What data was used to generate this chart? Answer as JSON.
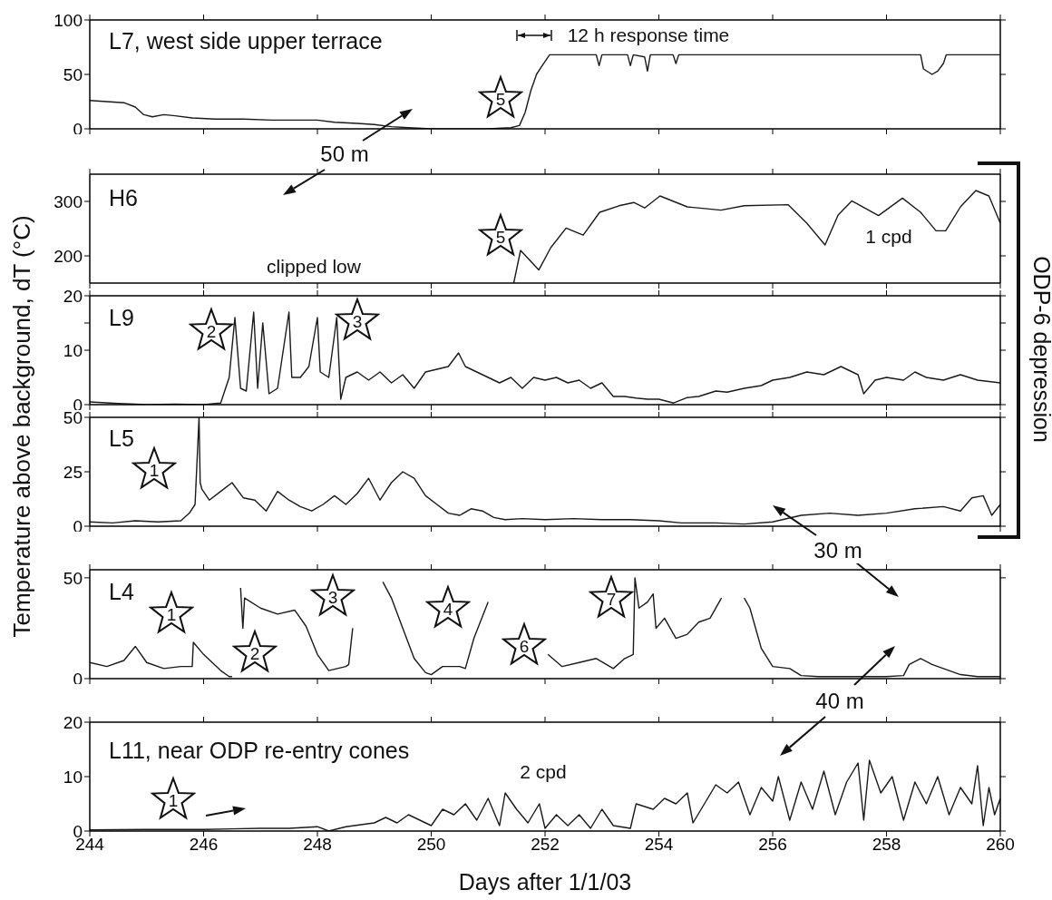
{
  "chart_data": [
    {
      "type": "line",
      "title": "L7, west side upper terrace",
      "color": "#1a1a1a",
      "xlim": [
        244,
        260
      ],
      "xticks": [
        244,
        246,
        248,
        250,
        252,
        254,
        256,
        258,
        260
      ],
      "ylim": [
        0,
        100
      ],
      "yticks": [
        0,
        50,
        100
      ],
      "tick_labels": "y",
      "x": [
        244,
        244.3,
        244.6,
        244.8,
        244.95,
        245.1,
        245.3,
        245.5,
        245.8,
        246.2,
        246.7,
        247.2,
        247.7,
        248.0,
        248.3,
        248.7,
        249.0,
        249.3,
        249.6,
        250.0,
        250.5,
        251.0,
        251.4,
        251.55,
        251.65,
        251.75,
        251.85,
        251.95,
        252.08,
        252.9,
        252.95,
        253.0,
        253.45,
        253.5,
        253.55,
        253.75,
        253.8,
        253.85,
        254.25,
        254.3,
        254.35,
        255,
        256,
        257,
        258,
        258.6,
        258.65,
        258.8,
        258.9,
        259.0,
        259.05,
        260
      ],
      "values": [
        26,
        25,
        24,
        20,
        13,
        11,
        13,
        12,
        10,
        9,
        9,
        8,
        8,
        8,
        6,
        5,
        4,
        2,
        1,
        0,
        0,
        0,
        1,
        3,
        15,
        35,
        50,
        58,
        68,
        68,
        58,
        68,
        68,
        58,
        68,
        66,
        53,
        68,
        68,
        60,
        68,
        68,
        68,
        68,
        68,
        68,
        55,
        50,
        53,
        60,
        68,
        68
      ],
      "annotations": [
        "5",
        "12 h response time",
        "50 m"
      ]
    },
    {
      "type": "line",
      "title": "H6",
      "color": "#1a1a1a",
      "xlim": [
        244,
        260
      ],
      "xticks": [
        244,
        246,
        248,
        250,
        252,
        254,
        256,
        258,
        260
      ],
      "ylim": [
        150,
        350
      ],
      "yticks": [
        200,
        300
      ],
      "tick_labels": "y",
      "x": [
        251.45,
        251.57,
        251.89,
        252.1,
        252.37,
        252.67,
        252.96,
        253.3,
        253.56,
        253.75,
        254.02,
        254.5,
        255.09,
        255.5,
        256.27,
        256.6,
        256.92,
        257.15,
        257.39,
        257.86,
        258.28,
        258.6,
        258.87,
        259.04,
        259.3,
        259.57,
        259.8,
        260
      ],
      "values": [
        150,
        210,
        174,
        215,
        251,
        238,
        280,
        292,
        298,
        288,
        310,
        290,
        284,
        292,
        294,
        260,
        220,
        275,
        301,
        274,
        306,
        280,
        246,
        246,
        290,
        320,
        310,
        260
      ],
      "annotations": [
        "5",
        "clipped low",
        "1 cpd",
        "ODP-6 depression"
      ]
    },
    {
      "type": "line",
      "title": "L9",
      "ylabel": "Temperature above background, dT (°C)",
      "color": "#1a1a1a",
      "xlim": [
        244,
        260
      ],
      "xticks": [
        244,
        246,
        248,
        250,
        252,
        254,
        256,
        258,
        260
      ],
      "ylim": [
        0,
        20
      ],
      "yticks": [
        0,
        10,
        {
          "value": 15,
          "label": null
        },
        20
      ],
      "tick_labels": "y",
      "x": [
        244,
        244.5,
        245,
        245.5,
        246,
        246.3,
        246.45,
        246.55,
        246.65,
        246.75,
        246.88,
        246.95,
        247.04,
        247.15,
        247.3,
        247.5,
        247.55,
        247.7,
        247.85,
        248.0,
        248.05,
        248.2,
        248.34,
        248.41,
        248.5,
        248.7,
        248.9,
        249.1,
        249.3,
        249.5,
        249.7,
        249.9,
        250.1,
        250.3,
        250.48,
        250.6,
        250.8,
        251.0,
        251.2,
        251.4,
        251.6,
        251.8,
        252.0,
        252.2,
        252.4,
        252.6,
        252.8,
        253.0,
        253.2,
        253.4,
        253.6,
        253.8,
        254.0,
        254.26,
        254.5,
        254.7,
        255.0,
        255.2,
        255.5,
        255.8,
        256.0,
        256.3,
        256.6,
        256.9,
        257.2,
        257.5,
        257.6,
        257.8,
        258.0,
        258.3,
        258.5,
        258.7,
        259.0,
        259.3,
        259.6,
        260
      ],
      "values": [
        0.5,
        0.2,
        0,
        0.1,
        0,
        0.3,
        5,
        16,
        3,
        2.5,
        17,
        3,
        15,
        2,
        3,
        17,
        5,
        5,
        7,
        16,
        6,
        5,
        16,
        1,
        5,
        6,
        4.5,
        6,
        4,
        5.5,
        3,
        6,
        6.5,
        7,
        9.5,
        7,
        6,
        5,
        4,
        5,
        3,
        5,
        4.5,
        5,
        4,
        4.5,
        3,
        4,
        1.5,
        1.5,
        1.2,
        1,
        1,
        0.3,
        1.3,
        1.5,
        2.5,
        2.3,
        3,
        3.5,
        4.5,
        5,
        6,
        5.5,
        7,
        5.5,
        2,
        4.5,
        5,
        4.5,
        6,
        5,
        4.5,
        5.5,
        4.5,
        4
      ],
      "annotations": [
        "2",
        "3"
      ]
    },
    {
      "type": "line",
      "title": "L5",
      "color": "#1a1a1a",
      "xlim": [
        244,
        260
      ],
      "xticks": [
        244,
        246,
        248,
        250,
        252,
        254,
        256,
        258,
        260
      ],
      "ylim": [
        0,
        50
      ],
      "yticks": [
        0,
        25,
        50
      ],
      "tick_labels": "y",
      "x": [
        244,
        244.4,
        244.8,
        245.2,
        245.6,
        245.75,
        245.85,
        245.92,
        245.94,
        245.97,
        246.1,
        246.3,
        246.5,
        246.7,
        246.9,
        247.1,
        247.3,
        247.5,
        247.7,
        247.9,
        248.1,
        248.3,
        248.5,
        248.7,
        248.9,
        249.1,
        249.3,
        249.5,
        249.7,
        249.9,
        250.1,
        250.3,
        250.5,
        250.7,
        250.9,
        251.1,
        251.3,
        251.6,
        252.0,
        252.5,
        253.0,
        253.5,
        254.0,
        254.4,
        255.0,
        255.5,
        256.0,
        256.5,
        257.0,
        257.5,
        258.0,
        258.5,
        259.0,
        259.3,
        259.5,
        259.7,
        259.85,
        260
      ],
      "values": [
        2,
        1.5,
        2.5,
        2,
        2.5,
        6,
        10,
        50,
        20,
        17,
        12,
        16,
        20,
        13,
        12,
        7,
        16,
        12,
        9,
        7,
        10,
        14,
        10,
        15,
        22,
        12,
        20,
        25,
        22,
        14,
        10,
        6,
        5,
        8,
        7,
        4,
        3,
        3.5,
        3,
        3.5,
        3,
        3,
        2.5,
        1.5,
        1.5,
        1,
        2,
        5,
        6,
        5,
        6,
        8,
        9,
        7,
        13,
        14,
        5,
        10
      ],
      "annotations": [
        "1",
        "30 m"
      ]
    },
    {
      "type": "line",
      "title": "L4",
      "color": "#1a1a1a",
      "xlim": [
        244,
        260
      ],
      "xticks": [
        244,
        246,
        248,
        250,
        252,
        254,
        256,
        258,
        260
      ],
      "ylim": [
        0,
        54
      ],
      "yticks": [
        0,
        50
      ],
      "tick_labels": "y",
      "x": [
        244,
        244.3,
        244.6,
        244.8,
        245.0,
        245.3,
        245.6,
        245.8,
        245.82,
        246.0,
        246.3,
        246.45,
        246.5,
        246.55,
        246.65,
        246.69,
        246.72,
        247.0,
        247.3,
        247.6,
        247.8,
        248.0,
        248.2,
        248.5,
        248.55,
        248.62,
        248.7,
        249.1,
        249.15,
        249.3,
        249.5,
        249.7,
        249.9,
        250.0,
        250.2,
        250.5,
        250.6,
        250.75,
        251.0,
        251.16,
        252.02,
        252.05,
        252.3,
        252.6,
        252.9,
        253.2,
        253.4,
        253.55,
        253.58,
        253.65,
        253.8,
        253.9,
        253.95,
        254.1,
        254.3,
        254.5,
        254.7,
        254.9,
        255.1,
        255.2,
        255.4,
        255.5,
        255.6,
        255.8,
        256.0,
        256.3,
        256.5,
        256.8,
        257.5,
        258.0,
        258.3,
        258.4,
        258.6,
        258.8,
        259.0,
        259.3,
        259.6,
        260
      ],
      "values": [
        8,
        6,
        9,
        16,
        8,
        5,
        6,
        6,
        18,
        12,
        4,
        1,
        1,
        null,
        45,
        25,
        40,
        35,
        32,
        34,
        26,
        12,
        4,
        6,
        7,
        25,
        null,
        null,
        48,
        40,
        25,
        10,
        3,
        2,
        6,
        6,
        5,
        20,
        38,
        null,
        null,
        12,
        6,
        8,
        10,
        5,
        10,
        12,
        50,
        35,
        38,
        42,
        25,
        30,
        20,
        22,
        28,
        30,
        40,
        null,
        null,
        40,
        35,
        15,
        6,
        5,
        1.5,
        1,
        1,
        1,
        1.5,
        7,
        10,
        7,
        5,
        2,
        1,
        1
      ],
      "annotations": [
        "1",
        "2",
        "3",
        "4",
        "6",
        "7",
        "40 m"
      ]
    },
    {
      "type": "line",
      "title": "L11, near ODP re-entry cones",
      "xlabel": "Days after 1/1/03",
      "color": "#1a1a1a",
      "xlim": [
        244,
        260
      ],
      "xticks": [
        244,
        246,
        248,
        250,
        252,
        254,
        256,
        258,
        260
      ],
      "ylim": [
        0,
        20
      ],
      "yticks": [
        0,
        10,
        20
      ],
      "x": [
        244,
        245,
        246,
        247,
        247.5,
        248.0,
        248.2,
        248.5,
        249.0,
        249.2,
        249.4,
        249.6,
        249.8,
        250.0,
        250.2,
        250.4,
        250.6,
        250.8,
        251.0,
        251.2,
        251.3,
        251.5,
        251.7,
        251.9,
        252.0,
        252.2,
        252.4,
        252.6,
        252.8,
        253.0,
        253.2,
        253.5,
        253.6,
        253.9,
        254.1,
        254.3,
        254.5,
        254.6,
        254.8,
        255.0,
        255.2,
        255.4,
        255.6,
        255.8,
        256.0,
        256.1,
        256.3,
        256.5,
        256.7,
        256.9,
        257.1,
        257.3,
        257.5,
        257.6,
        257.7,
        257.9,
        258.1,
        258.3,
        258.5,
        258.7,
        258.9,
        259.1,
        259.3,
        259.5,
        259.6,
        259.7,
        259.8,
        259.9,
        260
      ],
      "values": [
        0.2,
        0.3,
        0.3,
        0.5,
        0.5,
        0.8,
        0,
        0.8,
        1.5,
        2.5,
        1.5,
        3,
        2,
        1,
        4,
        3,
        5,
        2,
        6,
        1,
        7,
        4,
        1.5,
        5,
        0.5,
        3,
        1,
        3,
        0.5,
        4,
        1,
        0.5,
        5,
        4,
        6,
        5,
        7,
        1.5,
        5,
        8.5,
        7,
        9,
        3,
        8,
        5.5,
        10,
        2,
        9,
        4,
        11,
        3,
        9,
        12.5,
        2,
        13,
        7,
        10,
        2,
        9,
        5,
        10,
        3,
        8,
        5,
        12,
        1,
        8,
        3,
        6
      ],
      "annotations": [
        "1",
        "2 cpd"
      ]
    }
  ]
}
